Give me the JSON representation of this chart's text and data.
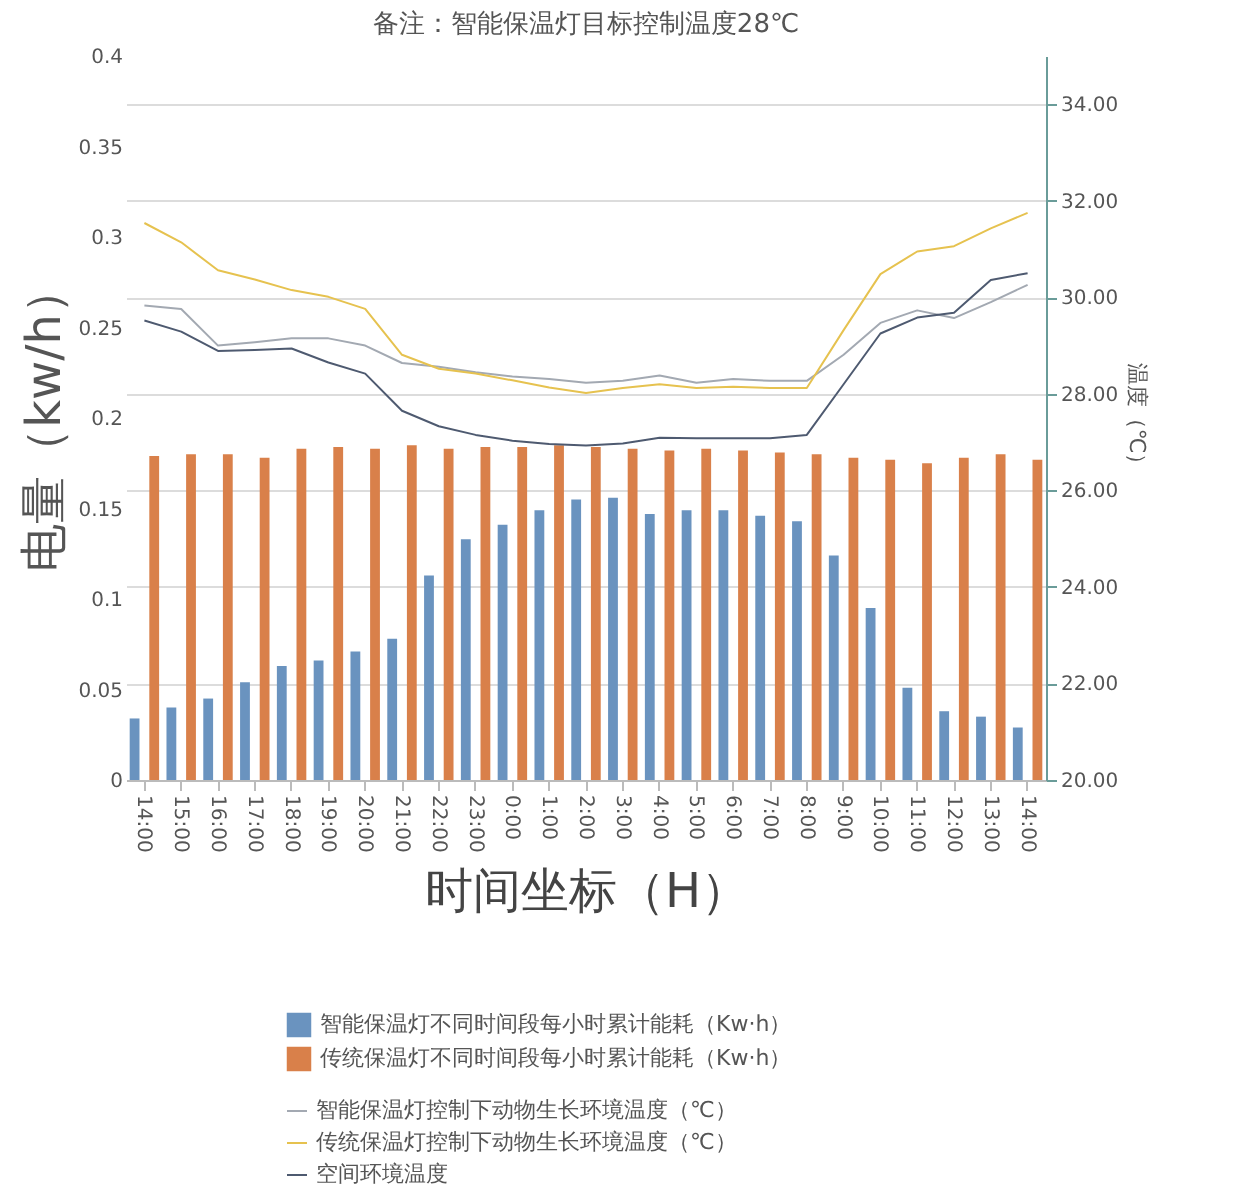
{
  "chart_data": {
    "type": "bar",
    "annotations": [
      "备注：智能保温灯目标控制温度28℃"
    ],
    "xlabel": "时间坐标（H）",
    "ylabel": "电量（kw/h）",
    "y2label": "温度（℃）",
    "categories": [
      "14:00",
      "15:00",
      "16:00",
      "17:00",
      "18:00",
      "19:00",
      "20:00",
      "21:00",
      "22:00",
      "23:00",
      "0:00",
      "1:00",
      "2:00",
      "3:00",
      "4:00",
      "5:00",
      "6:00",
      "7:00",
      "8:00",
      "9:00",
      "10:00",
      "11:00",
      "12:00",
      "13:00",
      "14:00"
    ],
    "ylim": [
      0,
      0.4
    ],
    "yticks": [
      0,
      0.05,
      0.1,
      0.15,
      0.2,
      0.25,
      0.3,
      0.35,
      0.4
    ],
    "y2lim": [
      20,
      35
    ],
    "y2ticks": [
      {
        "value": 20,
        "label": "20.00"
      },
      {
        "value": 22,
        "label": "22.00"
      },
      {
        "value": 24,
        "label": "24.00"
      },
      {
        "value": 26,
        "label": "26.00"
      },
      {
        "value": 28,
        "label": "28.00"
      },
      {
        "value": 30,
        "label": "30.00"
      },
      {
        "value": 32,
        "label": "32.00"
      },
      {
        "value": 34,
        "label": "34.00"
      }
    ],
    "grid": "y",
    "legend": "bottom",
    "series": [
      {
        "name": "智能保温灯不同时间段每小时累计能耗（Kw·h）",
        "color": "#6a93bf",
        "values": [
          0.034,
          0.04,
          0.045,
          0.054,
          0.063,
          0.066,
          0.071,
          0.078,
          0.113,
          0.133,
          0.141,
          0.149,
          0.155,
          0.156,
          0.147,
          0.149,
          0.149,
          0.146,
          0.143,
          0.124,
          0.095,
          0.051,
          0.038,
          0.035,
          0.029
        ]
      },
      {
        "name": "传统保温灯不同时间段每小时累计能耗（Kw·h）",
        "color": "#d9804a",
        "values": [
          0.179,
          0.18,
          0.18,
          0.178,
          0.183,
          0.184,
          0.183,
          0.185,
          0.183,
          0.184,
          0.184,
          0.185,
          0.184,
          0.183,
          0.182,
          0.183,
          0.182,
          0.181,
          0.18,
          0.178,
          0.177,
          0.175,
          0.178,
          0.18,
          0.177
        ]
      },
      {
        "name": "智能保温灯控制下动物生长环境温度（℃）",
        "type": "line",
        "axis": "y2",
        "color": "#a3a9b2",
        "values": [
          29.83,
          29.76,
          29.0,
          29.07,
          29.15,
          29.15,
          29.0,
          28.64,
          28.56,
          28.45,
          28.36,
          28.31,
          28.23,
          28.27,
          28.38,
          28.23,
          28.31,
          28.27,
          28.27,
          28.81,
          29.47,
          29.73,
          29.57,
          29.9,
          30.26
        ]
      },
      {
        "name": "传统保温灯控制下动物生长环境温度（℃）",
        "type": "line",
        "axis": "y2",
        "color": "#e6c24f",
        "values": [
          31.54,
          31.14,
          30.56,
          30.37,
          30.15,
          30.01,
          29.76,
          28.81,
          28.52,
          28.42,
          28.28,
          28.13,
          28.02,
          28.12,
          28.2,
          28.12,
          28.15,
          28.12,
          28.12,
          29.32,
          30.48,
          30.95,
          31.06,
          31.43,
          31.75
        ]
      },
      {
        "name": "空间环境温度",
        "type": "line",
        "axis": "y2",
        "color": "#4e5a70",
        "values": [
          29.52,
          29.29,
          28.89,
          28.91,
          28.94,
          28.65,
          28.42,
          27.65,
          27.33,
          27.15,
          27.03,
          26.96,
          26.93,
          26.97,
          27.09,
          27.08,
          27.08,
          27.08,
          27.15,
          28.2,
          29.25,
          29.58,
          29.68,
          30.36,
          30.5
        ]
      }
    ]
  }
}
